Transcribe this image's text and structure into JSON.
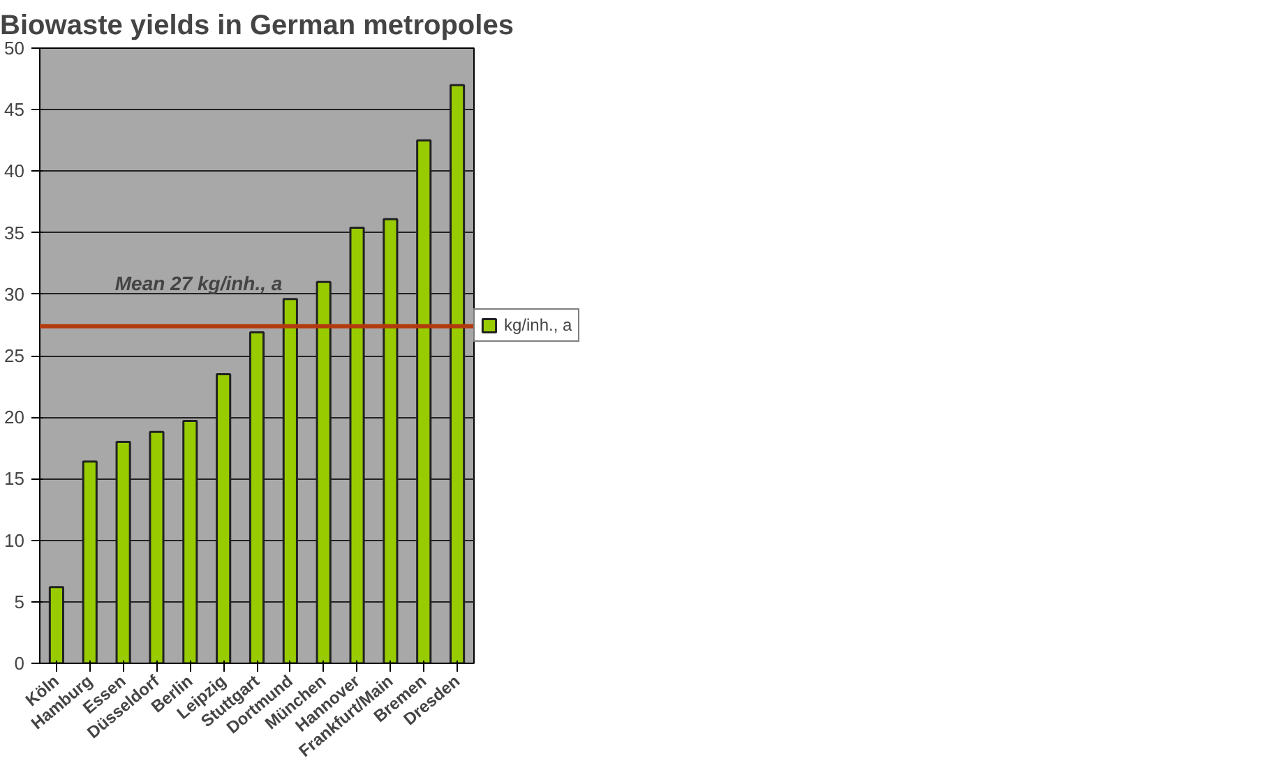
{
  "chart_data": {
    "type": "bar",
    "title": "Biowaste yields in German metropoles",
    "categories": [
      "Köln",
      "Hamburg",
      "Essen",
      "Düsseldorf",
      "Berlin",
      "Leipzig",
      "Stuttgart",
      "Dortmund",
      "München",
      "Hannover",
      "Frankfurt/Main",
      "Bremen",
      "Dresden"
    ],
    "series": [
      {
        "name": "kg/inh., a",
        "color": "#99cc00",
        "values": [
          6.2,
          16.4,
          18.0,
          18.8,
          19.7,
          23.5,
          26.9,
          29.6,
          31.0,
          35.4,
          36.1,
          42.5,
          47.0
        ]
      }
    ],
    "ylim": [
      0,
      50
    ],
    "yticks": [
      0,
      5,
      10,
      15,
      20,
      25,
      30,
      35,
      40,
      45,
      50
    ],
    "grid": "y",
    "legend": "right",
    "ref_lines": [
      {
        "axis": "y",
        "value": 27.4,
        "label": "Mean 27 kg/inh., a",
        "color": "#b33a0e"
      }
    ]
  }
}
